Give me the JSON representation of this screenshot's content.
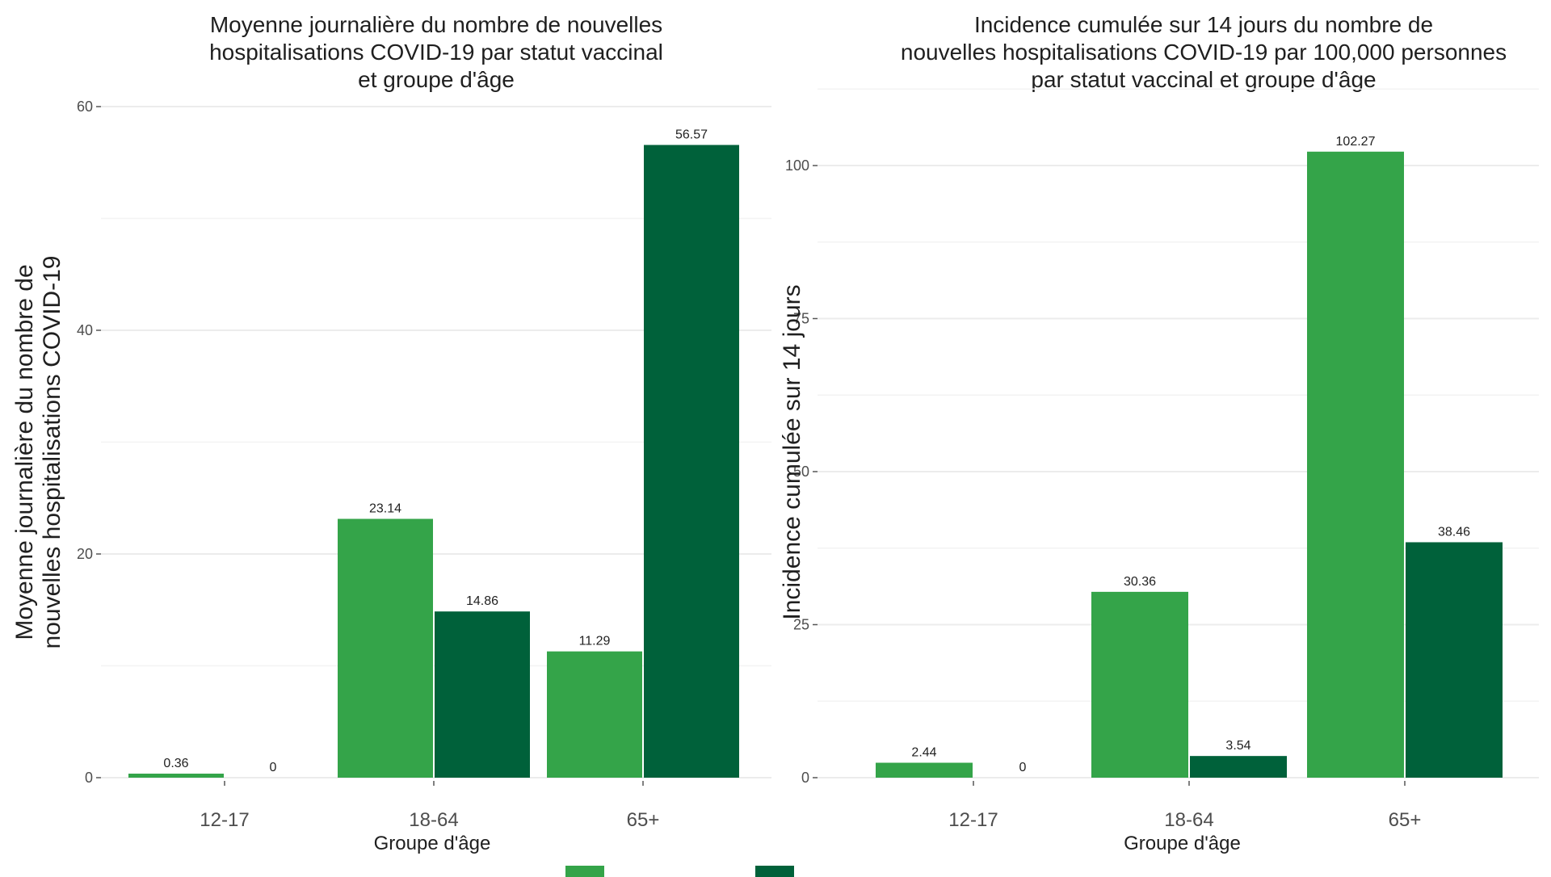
{
  "colors": {
    "unvaccinated": "#34a449",
    "fully_vaccinated": "#00613a",
    "grid": "#ececec",
    "axis_text": "#4d4d4d"
  },
  "chart_data": [
    {
      "type": "bar",
      "title_lines": [
        "Moyenne journalière du nombre de nouvelles",
        "hospitalisations COVID-19 par statut vaccinal",
        "et groupe d'âge"
      ],
      "xlabel": "Groupe d'âge",
      "ylabel_lines": [
        "Moyenne journalière du nombre de",
        "nouvelles hospitalisations COVID-19"
      ],
      "categories": [
        "12-17",
        "18-64",
        "65+"
      ],
      "series": [
        {
          "values": [
            0.36,
            23.14,
            11.29
          ],
          "labels": [
            "0.36",
            "23.14",
            "11.29"
          ]
        },
        {
          "values": [
            0,
            14.86,
            56.57
          ],
          "labels": [
            "0",
            "14.86",
            "56.57"
          ]
        }
      ],
      "ylim": [
        0,
        60
      ],
      "yticks": [
        0,
        20,
        40,
        60
      ],
      "grid": true
    },
    {
      "type": "bar",
      "title_lines": [
        "Incidence cumulée sur 14 jours du nombre de",
        "nouvelles hospitalisations COVID-19 par 100,000 personnes",
        "par statut vaccinal et groupe d'âge"
      ],
      "xlabel": "Groupe d'âge",
      "ylabel_lines": [
        "Incidence cumulée sur 14 jours"
      ],
      "categories": [
        "12-17",
        "18-64",
        "65+"
      ],
      "series": [
        {
          "values": [
            2.44,
            30.36,
            102.27
          ],
          "labels": [
            "2.44",
            "30.36",
            "102.27"
          ]
        },
        {
          "values": [
            0,
            3.54,
            38.46
          ],
          "labels": [
            "0",
            "3.54",
            "38.46"
          ]
        }
      ],
      "ylim": [
        0,
        110
      ],
      "yticks": [
        0,
        25,
        50,
        75,
        100
      ],
      "grid": true
    }
  ]
}
